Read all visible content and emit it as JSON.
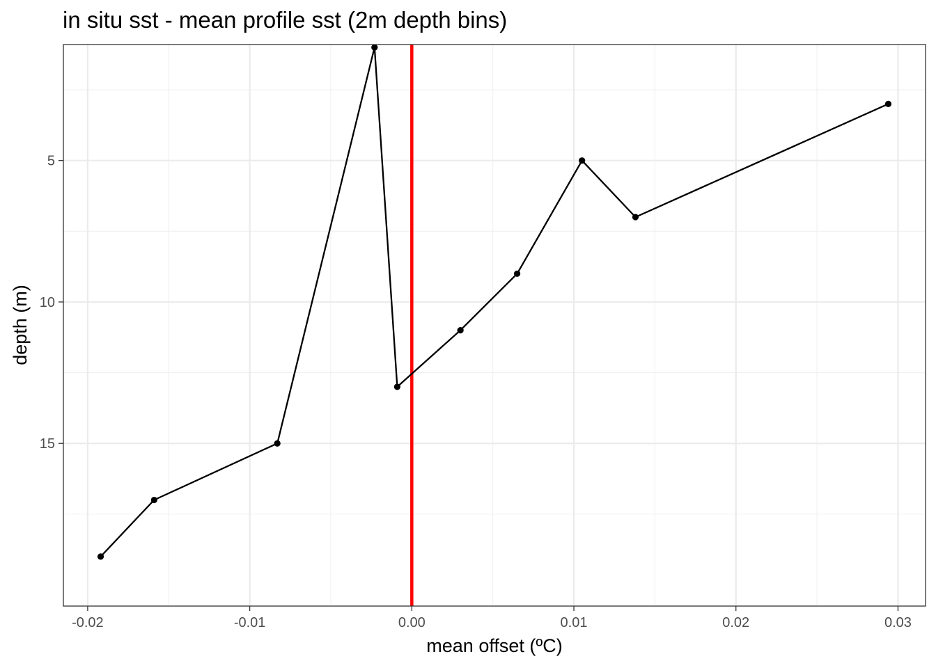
{
  "chart_data": {
    "type": "line",
    "title": "in situ sst - mean profile sst (2m depth bins)",
    "xlabel": "mean offset (ºC)",
    "ylabel": "depth (m)",
    "xlim": [
      -0.0215,
      0.0317
    ],
    "ylim": [
      0.9,
      20.75
    ],
    "y_reversed": true,
    "x_ticks": [
      -0.02,
      -0.01,
      0.0,
      0.01,
      0.02,
      0.03
    ],
    "x_tick_labels": [
      "-0.02",
      "-0.01",
      "0.00",
      "0.01",
      "0.02",
      "0.03"
    ],
    "y_ticks": [
      5,
      10,
      15
    ],
    "y_tick_labels": [
      "5",
      "10",
      "15"
    ],
    "grid": true,
    "reference_line": {
      "x": 0.0,
      "color": "#ff0000"
    },
    "series": [
      {
        "color": "#000000",
        "points": [
          {
            "x": 0.0294,
            "y": 3
          },
          {
            "x": 0.0138,
            "y": 7
          },
          {
            "x": 0.0105,
            "y": 5
          },
          {
            "x": 0.0065,
            "y": 9
          },
          {
            "x": 0.003,
            "y": 11
          },
          {
            "x": -0.0009,
            "y": 13
          },
          {
            "x": -0.0023,
            "y": 1
          },
          {
            "x": -0.0083,
            "y": 15
          },
          {
            "x": -0.0159,
            "y": 17
          },
          {
            "x": -0.0192,
            "y": 19
          }
        ]
      }
    ]
  }
}
